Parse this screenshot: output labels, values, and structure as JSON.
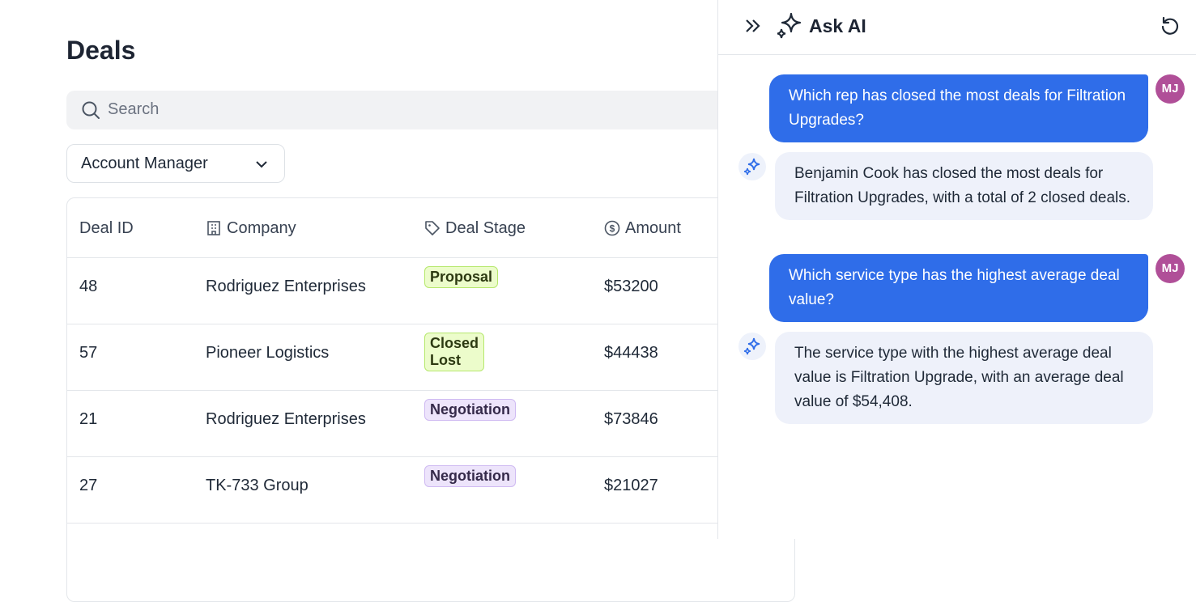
{
  "page": {
    "title": "Deals",
    "search_placeholder": "Search",
    "filter": "Account Manager"
  },
  "table": {
    "columns": [
      "Deal ID",
      "Company",
      "Deal Stage",
      "Amount"
    ],
    "rows": [
      [
        "48",
        "Rodriguez Enterprises",
        "Proposal",
        "$53200"
      ],
      [
        "57",
        "Pioneer Logistics",
        "Closed Lost",
        "$44438"
      ],
      [
        "21",
        "Rodriguez Enterprises",
        "Negotiation",
        "$73846"
      ],
      [
        "27",
        "TK-733 Group",
        "Negotiation",
        "$21027"
      ]
    ]
  },
  "chat": {
    "title": "Ask AI",
    "messages": [
      {
        "avatar": "MJ",
        "text": "Which rep has closed the most deals for Filtration Upgrades?"
      },
      {
        "text": "Benjamin Cook has closed the most deals for Filtration Upgrades, with a total of 2 closed deals."
      },
      {
        "avatar": "MJ",
        "text": "Which service type has the highest average deal value?"
      },
      {
        "text": "The service type with the highest average deal value is Filtration Upgrade, with an average deal value of $54,408."
      }
    ]
  }
}
